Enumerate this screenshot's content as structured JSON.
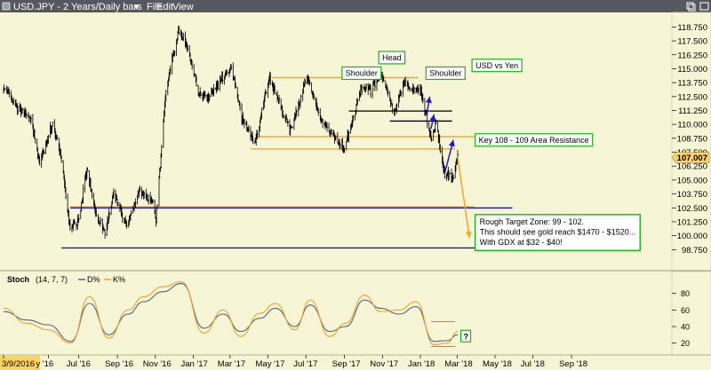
{
  "toolbar": {
    "title": "USD.JPY - 2 Years/Daily bars",
    "menu": [
      "File",
      "Edit",
      "View"
    ],
    "controls": [
      "restore-icon",
      "maximize-icon"
    ]
  },
  "colors": {
    "background": "#f6f6d6",
    "toolbar": "#55595f",
    "price_bar": "#000000",
    "orange": "#f5a623",
    "blue": "#1a1ad0",
    "green_box": "#19b319",
    "d_line": "#52667a",
    "k_line": "#f0a030",
    "price_tag": "#ffd35c"
  },
  "chart_data": [
    {
      "type": "ohlc",
      "title": "USD.JPY",
      "ylim": [
        97.5,
        119.5
      ],
      "y_ticks": [
        "118.750",
        "117.500",
        "116.250",
        "115.000",
        "113.750",
        "112.500",
        "111.250",
        "110.000",
        "108.750",
        "107.500",
        "106.250",
        "105.000",
        "103.750",
        "102.500",
        "101.250",
        "100.000",
        "98.750"
      ],
      "x_ticks": [
        "3/9/2016",
        "y '16",
        "Jul '16",
        "Sep '16",
        "Nov '16",
        "Jan '17",
        "Mar '17",
        "May '17",
        "Jul '17",
        "Sep '17",
        "Nov '17",
        "Jan '18",
        "Mar '18",
        "May '18",
        "Jul '18",
        "Sep '18"
      ],
      "last_price": "107.007",
      "path": [
        {
          "date": "2016-03-09",
          "price": 113.2
        },
        {
          "date": "2016-04-01",
          "price": 111.5
        },
        {
          "date": "2016-04-22",
          "price": 110.6
        },
        {
          "date": "2016-05-06",
          "price": 106.5
        },
        {
          "date": "2016-05-27",
          "price": 110.2
        },
        {
          "date": "2016-06-10",
          "price": 106.8
        },
        {
          "date": "2016-06-24",
          "price": 100.5
        },
        {
          "date": "2016-07-08",
          "price": 101.5
        },
        {
          "date": "2016-07-21",
          "price": 106.0
        },
        {
          "date": "2016-08-05",
          "price": 101.8
        },
        {
          "date": "2016-08-19",
          "price": 100.3
        },
        {
          "date": "2016-09-02",
          "price": 103.8
        },
        {
          "date": "2016-09-23",
          "price": 100.8
        },
        {
          "date": "2016-10-14",
          "price": 104.2
        },
        {
          "date": "2016-11-04",
          "price": 103.0
        },
        {
          "date": "2016-11-09",
          "price": 101.5
        },
        {
          "date": "2016-11-25",
          "price": 113.0
        },
        {
          "date": "2016-12-15",
          "price": 118.4
        },
        {
          "date": "2016-12-30",
          "price": 116.9
        },
        {
          "date": "2017-01-17",
          "price": 112.8
        },
        {
          "date": "2017-02-03",
          "price": 112.5
        },
        {
          "date": "2017-03-10",
          "price": 115.2
        },
        {
          "date": "2017-03-27",
          "price": 110.5
        },
        {
          "date": "2017-04-17",
          "price": 108.2
        },
        {
          "date": "2017-05-10",
          "price": 114.3
        },
        {
          "date": "2017-06-01",
          "price": 111.0
        },
        {
          "date": "2017-06-14",
          "price": 109.5
        },
        {
          "date": "2017-07-10",
          "price": 114.3
        },
        {
          "date": "2017-08-01",
          "price": 110.3
        },
        {
          "date": "2017-09-08",
          "price": 107.8
        },
        {
          "date": "2017-10-06",
          "price": 113.4
        },
        {
          "date": "2017-10-20",
          "price": 113.0
        },
        {
          "date": "2017-11-06",
          "price": 114.6
        },
        {
          "date": "2017-11-27",
          "price": 111.0
        },
        {
          "date": "2017-12-12",
          "price": 113.7
        },
        {
          "date": "2017-12-22",
          "price": 113.2
        },
        {
          "date": "2018-01-09",
          "price": 113.0
        },
        {
          "date": "2018-01-26",
          "price": 108.5
        },
        {
          "date": "2018-02-02",
          "price": 110.2
        },
        {
          "date": "2018-02-16",
          "price": 105.6
        },
        {
          "date": "2018-03-02",
          "price": 105.3
        },
        {
          "date": "2018-03-09",
          "price": 107.0
        }
      ],
      "lines": [
        {
          "kind": "orange",
          "from": [
            "2016-06-24",
            102.6
          ],
          "to": [
            "2018-04-05",
            102.6
          ]
        },
        {
          "kind": "orange",
          "from": [
            "2017-05-15",
            114.2
          ],
          "to": [
            "2018-01-05",
            114.2
          ]
        },
        {
          "kind": "orange",
          "from": [
            "2017-04-20",
            108.9
          ],
          "to": [
            "2018-04-05",
            108.9
          ]
        },
        {
          "kind": "orange",
          "from": [
            "2017-04-10",
            107.8
          ],
          "to": [
            "2018-03-05",
            107.8
          ]
        },
        {
          "kind": "black",
          "from": [
            "2017-09-15",
            111.2
          ],
          "to": [
            "2018-02-28",
            111.2
          ]
        },
        {
          "kind": "black",
          "from": [
            "2017-11-20",
            110.3
          ],
          "to": [
            "2018-02-28",
            110.3
          ]
        },
        {
          "kind": "blue",
          "from": [
            "2016-06-24",
            102.5
          ],
          "to": [
            "2018-06-05",
            102.5
          ]
        },
        {
          "kind": "blue",
          "from": [
            "2016-06-10",
            98.9
          ],
          "to": [
            "2018-06-05",
            98.9
          ]
        }
      ],
      "arrows": [
        {
          "color": "orange",
          "from": [
            "2018-03-09",
            107.0
          ],
          "to": [
            "2018-03-28",
            99.8
          ]
        },
        {
          "color": "blue",
          "from": [
            "2018-02-16",
            105.6
          ],
          "to": [
            "2018-03-02",
            108.6
          ]
        },
        {
          "color": "blue",
          "from": [
            "2018-01-18",
            110.8
          ],
          "to": [
            "2018-01-23",
            112.5
          ]
        },
        {
          "color": "blue",
          "from": [
            "2018-01-25",
            109.6
          ],
          "to": [
            "2018-01-30",
            110.9
          ]
        }
      ],
      "annotations": [
        {
          "id": "shoulder-left",
          "text": "Shoulder",
          "date": "2017-09-04",
          "price": 114.6
        },
        {
          "id": "head",
          "text": "Head",
          "date": "2017-11-02",
          "price": 116.0
        },
        {
          "id": "shoulder-right",
          "text": "Shoulder",
          "date": "2018-01-17",
          "price": 114.6
        },
        {
          "id": "usd-vs-yen",
          "text": "USD vs Yen",
          "date": "2018-04-01",
          "price": 115.3
        },
        {
          "id": "key-resistance",
          "text": "Key 108 -  109 Area Resistance",
          "date": "2018-04-06",
          "price": 108.6
        }
      ],
      "target_box": {
        "date": "2018-04-06",
        "price": 101.9,
        "lines": [
          "Rough Target Zone: 99 - 102.",
          "This should see gold reach $1470 - $1520...",
          "With GDX at $32 - $40!"
        ]
      }
    },
    {
      "type": "line",
      "title": "Stoch",
      "label_params": "(14, 7, 7)",
      "series": [
        {
          "name": "D%",
          "key": "d"
        },
        {
          "name": "K%",
          "key": "k"
        }
      ],
      "ylim": [
        10,
        100
      ],
      "y_ticks": [
        "80",
        "60",
        "40",
        "20"
      ],
      "overbought": 80,
      "oversold": 20,
      "question_mark": "?",
      "x_dates": [
        "2016-03-09",
        "2016-04-15",
        "2016-05-20",
        "2016-06-25",
        "2016-07-25",
        "2016-08-25",
        "2016-09-25",
        "2016-10-20",
        "2016-11-20",
        "2016-12-20",
        "2017-01-25",
        "2017-02-25",
        "2017-03-25",
        "2017-04-25",
        "2017-05-20",
        "2017-06-20",
        "2017-07-15",
        "2017-08-15",
        "2017-09-10",
        "2017-10-10",
        "2017-11-05",
        "2017-12-05",
        "2018-01-01",
        "2018-01-30",
        "2018-02-20",
        "2018-03-09"
      ],
      "d": [
        58,
        48,
        42,
        22,
        68,
        30,
        55,
        70,
        82,
        92,
        38,
        55,
        34,
        50,
        62,
        40,
        66,
        34,
        40,
        72,
        62,
        55,
        64,
        22,
        23,
        30
      ],
      "k": [
        62,
        44,
        36,
        20,
        76,
        26,
        60,
        76,
        88,
        94,
        32,
        60,
        28,
        56,
        68,
        36,
        72,
        28,
        44,
        78,
        58,
        60,
        70,
        18,
        20,
        34
      ]
    }
  ]
}
